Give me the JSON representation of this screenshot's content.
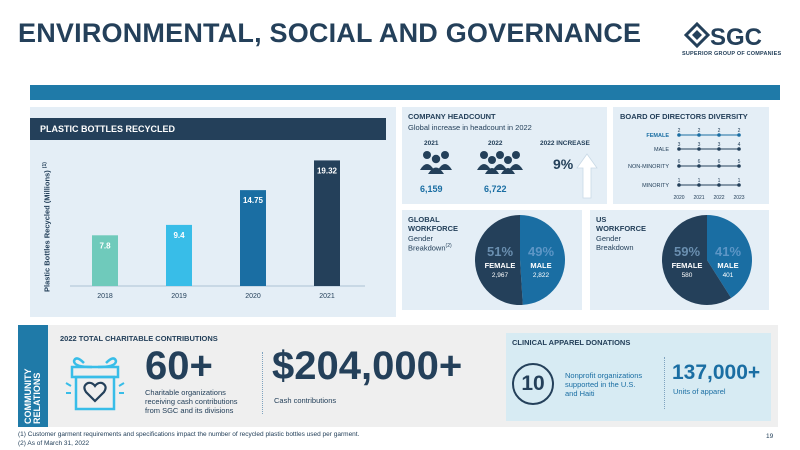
{
  "page": {
    "title": "ENVIRONMENTAL, SOCIAL AND GOVERNANCE",
    "page_number": "19"
  },
  "logo": {
    "word": "SGC",
    "subtitle": "SUPERIOR GROUP OF COMPANIES"
  },
  "plastic": {
    "title": "PLASTIC BOTTLES RECYCLED",
    "y_axis_label": "Plastic Bottles Recycled (Millions)",
    "y_axis_note": "(1)"
  },
  "chart_data": {
    "type": "bar",
    "title": "PLASTIC BOTTLES RECYCLED",
    "xlabel": "",
    "ylabel": "Plastic Bottles Recycled (Millions)",
    "categories": [
      "2018",
      "2019",
      "2020",
      "2021"
    ],
    "values": [
      7.8,
      9.4,
      14.75,
      19.32
    ],
    "value_labels": [
      "7.8",
      "9.4",
      "14.75",
      "19.32"
    ],
    "colors": [
      "#6fcabb",
      "#38bde8",
      "#1a6ea3",
      "#24405a"
    ],
    "ylim": [
      0,
      20
    ],
    "grid": false,
    "legend": "none"
  },
  "headcount": {
    "title": "COMPANY HEADCOUNT",
    "subtitle": "Global increase in headcount in 2022",
    "year_2021": "2021",
    "year_2022": "2022",
    "increase_label": "2022 INCREASE",
    "value_2021": "6,159",
    "value_2022": "6,722",
    "increase_value": "9%"
  },
  "board": {
    "title": "BOARD OF DIRECTORS DIVERSITY",
    "series": [
      {
        "name": "FEMALE",
        "values": [
          "2",
          "2",
          "2",
          "2"
        ],
        "color": "#1a6ea3"
      },
      {
        "name": "MALE",
        "values": [
          "3",
          "3",
          "3",
          "4"
        ],
        "color": "#24405a"
      },
      {
        "name": "NON-MINORITY",
        "values": [
          "6",
          "6",
          "6",
          "5"
        ],
        "color": "#24405a"
      },
      {
        "name": "MINORITY",
        "values": [
          "1",
          "1",
          "1",
          "1"
        ],
        "color": "#24405a"
      }
    ],
    "years": [
      "2020",
      "2021",
      "2022",
      "2023"
    ]
  },
  "global_workforce": {
    "title_line1": "GLOBAL",
    "title_line2": "WORKFORCE",
    "sub_line1": "Gender",
    "sub_line2": "Breakdown",
    "sub_note": "(2)",
    "female_pct": "51%",
    "male_pct": "49%",
    "female_label": "FEMALE",
    "male_label": "MALE",
    "female_count": "2,967",
    "male_count": "2,822",
    "female_share": 51
  },
  "us_workforce": {
    "title_line1": "US",
    "title_line2": "WORKFORCE",
    "sub_line1": "Gender",
    "sub_line2": "Breakdown",
    "female_pct": "59%",
    "male_pct": "41%",
    "female_label": "FEMALE",
    "male_label": "MALE",
    "female_count": "580",
    "male_count": "401",
    "female_share": 59
  },
  "community": {
    "side_label_line1": "COMMUNITY",
    "side_label_line2": "RELATIONS",
    "title": "2022 TOTAL CHARITABLE CONTRIBUTIONS",
    "orgs_value": "60+",
    "orgs_desc_1": "Charitable organizations",
    "orgs_desc_2": "receiving cash contributions",
    "orgs_desc_3": "from SGC and its divisions",
    "cash_value": "$204,000+",
    "cash_desc": "Cash contributions"
  },
  "clinical": {
    "title": "CLINICAL APPAREL DONATIONS",
    "nonprofit_value": "10",
    "nonprofit_desc_1": "Nonprofit organizations",
    "nonprofit_desc_2": "supported in the U.S.",
    "nonprofit_desc_3": "and Haiti",
    "units_value": "137,000+",
    "units_desc": "Units of apparel"
  },
  "footnotes": {
    "note1": "(1) Customer garment requirements and specifications impact the number of recycled plastic bottles used per garment.",
    "note2": "(2) As of March 31, 2022"
  }
}
